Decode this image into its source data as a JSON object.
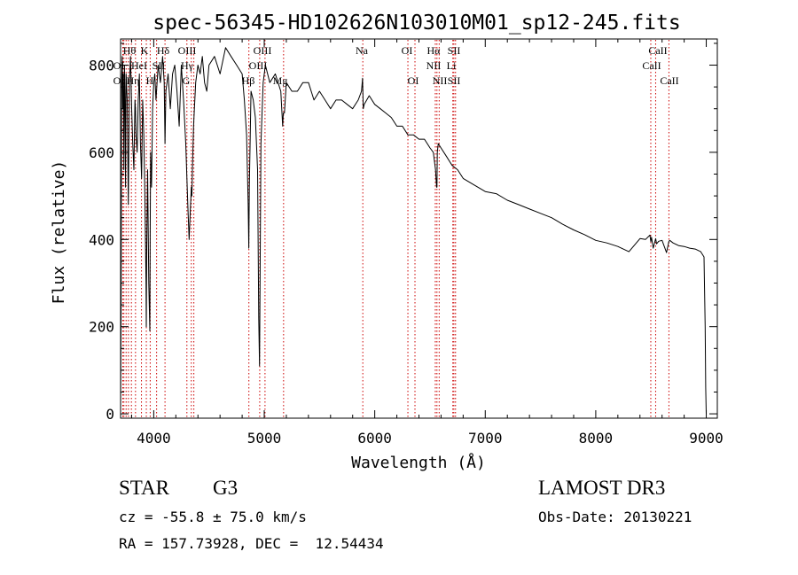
{
  "chart_data": {
    "type": "line",
    "title": "spec-56345-HD102626N103010M01_sp12-245.fits",
    "xlabel": "Wavelength (Å)",
    "ylabel": "Flux (relative)",
    "xlim": [
      3700,
      9100
    ],
    "ylim": [
      -10,
      860
    ],
    "xticks": [
      4000,
      5000,
      6000,
      7000,
      8000,
      9000
    ],
    "yticks": [
      0,
      200,
      400,
      600,
      800
    ],
    "x": [
      3700,
      3705,
      3710,
      3715,
      3720,
      3725,
      3730,
      3735,
      3740,
      3745,
      3750,
      3760,
      3770,
      3780,
      3790,
      3800,
      3810,
      3820,
      3830,
      3835,
      3840,
      3850,
      3860,
      3870,
      3880,
      3890,
      3900,
      3910,
      3920,
      3930,
      3933,
      3936,
      3945,
      3955,
      3965,
      3968,
      3972,
      3980,
      3990,
      4000,
      4010,
      4020,
      4040,
      4060,
      4080,
      4095,
      4102,
      4110,
      4130,
      4150,
      4170,
      4190,
      4210,
      4230,
      4250,
      4270,
      4290,
      4300,
      4310,
      4320,
      4330,
      4340,
      4345,
      4350,
      4360,
      4380,
      4400,
      4420,
      4440,
      4460,
      4480,
      4500,
      4550,
      4600,
      4650,
      4700,
      4750,
      4800,
      4820,
      4840,
      4855,
      4860,
      4865,
      4880,
      4900,
      4920,
      4940,
      4950,
      4957,
      4962,
      4970,
      4990,
      5010,
      5050,
      5100,
      5150,
      5167,
      5172,
      5183,
      5200,
      5250,
      5300,
      5350,
      5400,
      5450,
      5500,
      5550,
      5600,
      5650,
      5700,
      5750,
      5800,
      5850,
      5880,
      5890,
      5896,
      5905,
      5950,
      6000,
      6050,
      6100,
      6150,
      6200,
      6250,
      6300,
      6350,
      6400,
      6450,
      6500,
      6530,
      6550,
      6560,
      6563,
      6566,
      6575,
      6600,
      6650,
      6700,
      6750,
      6800,
      6900,
      7000,
      7100,
      7200,
      7300,
      7400,
      7500,
      7600,
      7700,
      7800,
      7900,
      8000,
      8100,
      8200,
      8300,
      8400,
      8450,
      8490,
      8498,
      8505,
      8520,
      8542,
      8550,
      8570,
      8600,
      8640,
      8662,
      8670,
      8700,
      8750,
      8800,
      8850,
      8900,
      8950,
      8980,
      8990,
      8995,
      9000
    ],
    "y": [
      0,
      260,
      760,
      820,
      700,
      780,
      560,
      800,
      720,
      520,
      780,
      720,
      480,
      760,
      820,
      700,
      620,
      560,
      720,
      700,
      640,
      600,
      720,
      780,
      620,
      540,
      720,
      640,
      500,
      300,
      200,
      360,
      560,
      300,
      190,
      420,
      600,
      520,
      700,
      760,
      780,
      720,
      800,
      760,
      820,
      760,
      620,
      740,
      780,
      700,
      780,
      800,
      740,
      660,
      800,
      720,
      620,
      540,
      470,
      400,
      460,
      520,
      500,
      560,
      660,
      760,
      800,
      780,
      820,
      760,
      740,
      800,
      820,
      780,
      840,
      820,
      800,
      780,
      720,
      640,
      480,
      380,
      520,
      740,
      720,
      680,
      560,
      220,
      110,
      300,
      620,
      760,
      800,
      760,
      780,
      740,
      660,
      690,
      690,
      760,
      740,
      740,
      760,
      760,
      720,
      740,
      720,
      700,
      720,
      720,
      710,
      700,
      720,
      740,
      770,
      700,
      710,
      730,
      710,
      700,
      690,
      680,
      660,
      660,
      640,
      640,
      630,
      630,
      610,
      600,
      560,
      520,
      520,
      600,
      620,
      610,
      590,
      570,
      560,
      540,
      525,
      510,
      505,
      490,
      480,
      470,
      460,
      450,
      435,
      422,
      411,
      398,
      392,
      384,
      372,
      402,
      400,
      410,
      395,
      405,
      380,
      402,
      390,
      396,
      398,
      370,
      396,
      398,
      392,
      386,
      384,
      380,
      378,
      372,
      360,
      200,
      60,
      0
    ]
  },
  "lines_top": [
    "Hθ",
    "K",
    "Hδ",
    "OIII",
    "OIII",
    "Na",
    "OI",
    "Hα",
    "SII",
    "CaII"
  ],
  "lines_mid": [
    "OI",
    "HeI",
    "SII",
    "Hγ",
    "OIII",
    "NII",
    "Li",
    "CaII"
  ],
  "lines_bot": [
    "OI",
    "Hη",
    "H",
    "G",
    "Hβ",
    "Mg",
    "OI",
    "NII",
    "SII",
    "CaII"
  ],
  "info": {
    "object_class": "STAR",
    "subclass": "G3",
    "survey": "LAMOST DR3",
    "cz_line": "cz = -55.8 ± 75.0 km/s",
    "obs_date": "Obs-Date: 20130221",
    "radec": "RA = 157.73928, DEC =  12.54434"
  },
  "colors": {
    "axis": "#000000",
    "spectrum": "#000000",
    "line_markers": "#cc0000"
  }
}
